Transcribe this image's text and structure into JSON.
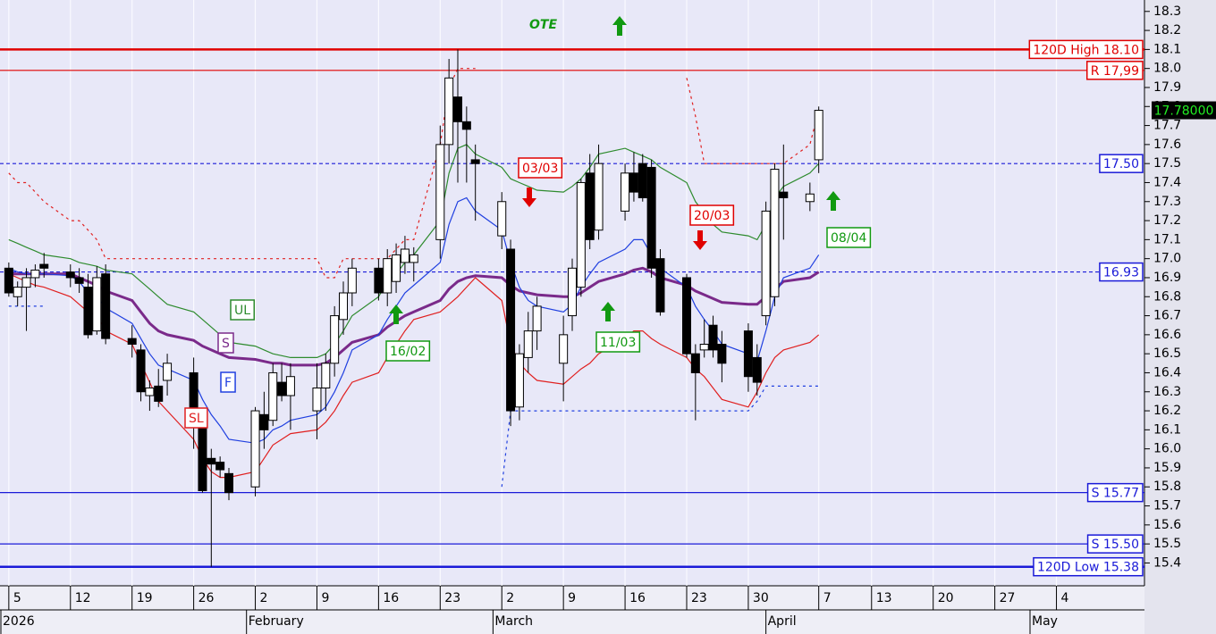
{
  "chart_data": {
    "type": "candlestick",
    "x": [
      "2026-01-05",
      "2026-01-06",
      "2026-01-07",
      "2026-01-08",
      "2026-01-09",
      "2026-01-12",
      "2026-01-13",
      "2026-01-14",
      "2026-01-15",
      "2026-01-16",
      "2026-01-19",
      "2026-01-20",
      "2026-01-21",
      "2026-01-22",
      "2026-01-23",
      "2026-01-26",
      "2026-01-27",
      "2026-01-28",
      "2026-01-29",
      "2026-01-30",
      "2026-02-02",
      "2026-02-03",
      "2026-02-04",
      "2026-02-05",
      "2026-02-06",
      "2026-02-09",
      "2026-02-10",
      "2026-02-11",
      "2026-02-12",
      "2026-02-13",
      "2026-02-16",
      "2026-02-17",
      "2026-02-18",
      "2026-02-19",
      "2026-02-20",
      "2026-02-23",
      "2026-02-24",
      "2026-02-25",
      "2026-02-26",
      "2026-02-27",
      "2026-03-02",
      "2026-03-03",
      "2026-03-04",
      "2026-03-05",
      "2026-03-06",
      "2026-03-09",
      "2026-03-10",
      "2026-03-11",
      "2026-03-12",
      "2026-03-13",
      "2026-03-16",
      "2026-03-17",
      "2026-03-18",
      "2026-03-19",
      "2026-03-20",
      "2026-03-23",
      "2026-03-24",
      "2026-03-25",
      "2026-03-26",
      "2026-03-27",
      "2026-03-30",
      "2026-03-31",
      "2026-04-01",
      "2026-04-02",
      "2026-04-03",
      "2026-04-06",
      "2026-04-07"
    ],
    "open": [
      16.95,
      16.8,
      16.85,
      16.9,
      16.97,
      16.93,
      16.9,
      16.85,
      16.62,
      16.92,
      16.58,
      16.52,
      16.28,
      16.33,
      16.36,
      16.4,
      16.12,
      15.95,
      15.93,
      15.87,
      15.8,
      16.18,
      16.15,
      16.35,
      16.28,
      16.2,
      16.32,
      16.45,
      16.68,
      16.82,
      16.95,
      16.82,
      16.88,
      16.98,
      16.98,
      17.1,
      17.6,
      17.85,
      17.72,
      17.52,
      17.12,
      17.05,
      16.22,
      16.48,
      16.62,
      16.45,
      16.7,
      16.85,
      17.45,
      17.15,
      17.25,
      17.45,
      17.5,
      17.48,
      17.0,
      16.9,
      16.5,
      16.52,
      16.65,
      16.55,
      16.62,
      16.48,
      16.7,
      16.8,
      17.35,
      17.3,
      17.52
    ],
    "high": [
      16.98,
      16.88,
      16.95,
      16.97,
      17.03,
      16.97,
      16.95,
      16.92,
      16.96,
      16.97,
      16.65,
      16.55,
      16.36,
      16.42,
      16.5,
      16.48,
      16.18,
      16.0,
      15.96,
      15.9,
      16.22,
      16.3,
      16.45,
      16.45,
      16.45,
      16.45,
      16.5,
      16.75,
      16.88,
      17.0,
      17.0,
      17.05,
      17.08,
      17.12,
      17.06,
      17.7,
      18.05,
      18.1,
      17.8,
      17.6,
      17.35,
      17.1,
      16.55,
      16.72,
      16.8,
      16.7,
      17.0,
      17.42,
      17.55,
      17.6,
      17.5,
      17.56,
      17.55,
      17.52,
      17.05,
      16.92,
      16.55,
      16.68,
      16.7,
      16.62,
      16.66,
      16.55,
      17.3,
      17.5,
      17.6,
      17.4,
      17.8
    ],
    "low": [
      16.8,
      16.75,
      16.62,
      16.85,
      16.9,
      16.85,
      16.82,
      16.58,
      16.6,
      16.55,
      16.48,
      16.25,
      16.2,
      16.22,
      16.28,
      16.0,
      15.77,
      15.38,
      15.85,
      15.73,
      15.75,
      16.0,
      16.12,
      16.25,
      16.1,
      16.05,
      16.2,
      16.38,
      16.6,
      16.75,
      16.78,
      16.75,
      16.82,
      16.92,
      16.88,
      17.0,
      17.5,
      17.4,
      17.4,
      17.2,
      17.05,
      16.12,
      16.15,
      16.4,
      16.52,
      16.25,
      16.62,
      16.8,
      17.05,
      17.1,
      17.2,
      17.3,
      17.3,
      16.9,
      16.7,
      16.48,
      16.15,
      16.48,
      16.48,
      16.35,
      16.3,
      16.28,
      16.65,
      16.75,
      17.1,
      17.25,
      17.45
    ],
    "close": [
      16.82,
      16.85,
      16.9,
      16.94,
      16.95,
      16.9,
      16.87,
      16.6,
      16.9,
      16.58,
      16.55,
      16.3,
      16.32,
      16.25,
      16.45,
      16.15,
      15.78,
      15.92,
      15.89,
      15.77,
      16.2,
      16.1,
      16.4,
      16.28,
      16.38,
      16.32,
      16.45,
      16.7,
      16.82,
      16.95,
      16.82,
      17.0,
      17.02,
      17.05,
      17.02,
      17.6,
      17.95,
      17.72,
      17.68,
      17.5,
      17.3,
      16.2,
      16.5,
      16.62,
      16.75,
      16.6,
      16.95,
      17.4,
      17.1,
      17.5,
      17.45,
      17.35,
      17.32,
      16.95,
      16.72,
      16.5,
      16.4,
      16.55,
      16.52,
      16.45,
      16.38,
      16.35,
      17.25,
      17.47,
      17.32,
      17.34,
      17.78
    ],
    "series": [
      {
        "name": "UL",
        "color": "#2e8b2e",
        "values": [
          17.1,
          17.08,
          17.06,
          17.04,
          17.02,
          17.0,
          16.98,
          16.97,
          16.96,
          16.94,
          16.92,
          16.88,
          16.84,
          16.8,
          16.76,
          16.72,
          16.68,
          16.64,
          16.6,
          16.56,
          16.54,
          16.52,
          16.5,
          16.49,
          16.48,
          16.48,
          16.5,
          16.55,
          16.62,
          16.7,
          16.8,
          16.88,
          16.92,
          16.98,
          17.02,
          17.2,
          17.45,
          17.58,
          17.6,
          17.55,
          17.48,
          17.42,
          17.4,
          17.38,
          17.36,
          17.35,
          17.38,
          17.42,
          17.48,
          17.55,
          17.58,
          17.56,
          17.54,
          17.52,
          17.48,
          17.4,
          17.3,
          17.24,
          17.18,
          17.14,
          17.12,
          17.1,
          17.18,
          17.32,
          17.38,
          17.45,
          17.5
        ]
      },
      {
        "name": "S",
        "color": "#7a2a8a",
        "values": [
          16.92,
          16.92,
          16.92,
          16.92,
          16.92,
          16.92,
          16.9,
          16.88,
          16.86,
          16.83,
          16.78,
          16.72,
          16.66,
          16.62,
          16.6,
          16.57,
          16.54,
          16.52,
          16.5,
          16.48,
          16.47,
          16.46,
          16.45,
          16.45,
          16.44,
          16.44,
          16.45,
          16.48,
          16.52,
          16.56,
          16.6,
          16.64,
          16.67,
          16.7,
          16.72,
          16.78,
          16.84,
          16.88,
          16.9,
          16.91,
          16.9,
          16.86,
          16.83,
          16.82,
          16.81,
          16.8,
          16.8,
          16.82,
          16.85,
          16.88,
          16.92,
          16.94,
          16.95,
          16.93,
          16.9,
          16.86,
          16.83,
          16.81,
          16.79,
          16.77,
          16.76,
          16.76,
          16.8,
          16.84,
          16.88,
          16.9,
          16.93
        ]
      },
      {
        "name": "F",
        "color": "#2040e0",
        "values": [
          16.95,
          16.93,
          16.92,
          16.92,
          16.92,
          16.91,
          16.88,
          16.82,
          16.8,
          16.74,
          16.66,
          16.58,
          16.5,
          16.44,
          16.42,
          16.36,
          16.26,
          16.18,
          16.12,
          16.05,
          16.03,
          16.05,
          16.1,
          16.12,
          16.15,
          16.18,
          16.22,
          16.3,
          16.4,
          16.52,
          16.6,
          16.68,
          16.75,
          16.82,
          16.86,
          16.98,
          17.18,
          17.3,
          17.32,
          17.25,
          17.15,
          16.98,
          16.85,
          16.78,
          16.75,
          16.72,
          16.76,
          16.85,
          16.92,
          16.98,
          17.05,
          17.1,
          17.1,
          17.02,
          16.95,
          16.85,
          16.75,
          16.68,
          16.62,
          16.55,
          16.5,
          16.46,
          16.62,
          16.8,
          16.9,
          16.95,
          17.02
        ]
      },
      {
        "name": "SL",
        "color": "#e02020",
        "values": [
          16.92,
          16.9,
          16.88,
          16.86,
          16.85,
          16.8,
          16.76,
          16.72,
          16.7,
          16.62,
          16.55,
          16.45,
          16.35,
          16.25,
          16.2,
          16.05,
          15.95,
          15.88,
          15.85,
          15.85,
          15.88,
          15.95,
          16.02,
          16.05,
          16.08,
          16.1,
          16.14,
          16.2,
          16.28,
          16.35,
          16.4,
          16.48,
          16.55,
          16.62,
          16.68,
          16.72,
          16.76,
          16.8,
          16.85,
          16.9,
          16.78,
          16.55,
          16.45,
          16.4,
          16.36,
          16.34,
          16.38,
          16.42,
          16.45,
          16.5,
          16.58,
          16.62,
          16.62,
          16.58,
          16.55,
          16.48,
          16.42,
          16.38,
          16.32,
          16.26,
          16.22,
          16.3,
          16.4,
          16.48,
          16.52,
          16.56,
          16.6
        ]
      },
      {
        "color": "#e02020",
        "dashed": true,
        "values": [
          17.45,
          17.4,
          17.4,
          17.35,
          17.3,
          17.2,
          17.2,
          17.15,
          17.1,
          17.0,
          17.0,
          17.0,
          17.0,
          17.0,
          17.0,
          17.0,
          17.0,
          17.0,
          17.0,
          17.0,
          17.0,
          17.0,
          17.0,
          17.0,
          17.0,
          17.0,
          16.9,
          16.9,
          17.0,
          17.0,
          17.0,
          17.0,
          17.05,
          17.1,
          17.1,
          17.6,
          17.9,
          18.0,
          18.0,
          18.0,
          null,
          null,
          null,
          null,
          null,
          null,
          null,
          null,
          null,
          null,
          null,
          null,
          null,
          null,
          null,
          17.95,
          17.75,
          17.5,
          17.5,
          17.5,
          17.5,
          17.5,
          17.5,
          17.5,
          17.5,
          17.6,
          17.78
        ]
      },
      {
        "color": "#2040e0",
        "dashed": true,
        "values": [
          16.75,
          16.75,
          16.75,
          16.75,
          16.75,
          null,
          null,
          null,
          null,
          null,
          null,
          null,
          null,
          null,
          null,
          null,
          null,
          null,
          null,
          null,
          null,
          null,
          null,
          null,
          null,
          null,
          null,
          null,
          null,
          null,
          null,
          null,
          null,
          null,
          null,
          null,
          null,
          null,
          null,
          null,
          15.8,
          16.2,
          16.2,
          16.2,
          16.2,
          16.2,
          16.2,
          16.2,
          16.2,
          16.2,
          16.2,
          16.2,
          16.2,
          16.2,
          16.2,
          16.2,
          16.2,
          16.2,
          16.2,
          16.2,
          16.2,
          16.25,
          16.33,
          16.33,
          16.33,
          16.33,
          16.33
        ]
      }
    ],
    "levels": [
      {
        "value": 18.1,
        "label": "120D High 18.10",
        "color": "#e00000",
        "style": "thick"
      },
      {
        "value": 17.99,
        "label": "R 17,99",
        "color": "#e00000",
        "style": "thin"
      },
      {
        "value": 17.5,
        "label": "17.50",
        "color": "#1a1ad8",
        "style": "dashed"
      },
      {
        "value": 16.93,
        "label": "16.93",
        "color": "#1a1ad8",
        "style": "dashed"
      },
      {
        "value": 15.77,
        "label": "S 15.77",
        "color": "#1a1ad8",
        "style": "thin"
      },
      {
        "value": 15.5,
        "label": "S 15.50",
        "color": "#1a1ad8",
        "style": "thin"
      },
      {
        "value": 15.38,
        "label": "120D Low 15.38",
        "color": "#1a1ad8",
        "style": "thick"
      }
    ],
    "last": {
      "value": 17.78,
      "label": "17.78000"
    },
    "annotations": [
      {
        "text": "OTE",
        "color": "#119911",
        "arrow": "up"
      },
      {
        "text": "03/03",
        "color": "#e00000",
        "arrow": "down"
      },
      {
        "text": "20/03",
        "color": "#e00000",
        "arrow": "down"
      },
      {
        "text": "16/02",
        "color": "#119911",
        "arrow": "up"
      },
      {
        "text": "11/03",
        "color": "#119911",
        "arrow": "up"
      },
      {
        "text": "08/04",
        "color": "#119911",
        "arrow": "up"
      }
    ],
    "xlim": [
      "2026-01-04",
      "2026-05-14"
    ],
    "xticks": [
      {
        "value": "2026-01-05",
        "label": "5"
      },
      {
        "value": "2026-01-12",
        "label": "12"
      },
      {
        "value": "2026-01-19",
        "label": "19"
      },
      {
        "value": "2026-01-26",
        "label": "26"
      },
      {
        "value": "2026-02-02",
        "label": "2"
      },
      {
        "value": "2026-02-09",
        "label": "9"
      },
      {
        "value": "2026-02-16",
        "label": "16"
      },
      {
        "value": "2026-02-23",
        "label": "23"
      },
      {
        "value": "2026-03-02",
        "label": "2"
      },
      {
        "value": "2026-03-09",
        "label": "9"
      },
      {
        "value": "2026-03-16",
        "label": "16"
      },
      {
        "value": "2026-03-23",
        "label": "23"
      },
      {
        "value": "2026-03-30",
        "label": "30"
      },
      {
        "value": "2026-04-07",
        "label": "7"
      },
      {
        "value": "2026-04-13",
        "label": "13"
      },
      {
        "value": "2026-04-20",
        "label": "20"
      },
      {
        "value": "2026-04-27",
        "label": "27"
      },
      {
        "value": "2026-05-04",
        "label": "4"
      }
    ],
    "months": [
      {
        "value": "2026-01-04",
        "label": "2026"
      },
      {
        "value": "2026-02-01",
        "label": "February"
      },
      {
        "value": "2026-03-01",
        "label": "March"
      },
      {
        "value": "2026-04-01",
        "label": "April"
      },
      {
        "value": "2026-05-01",
        "label": "May"
      }
    ],
    "ylim": [
      15.28,
      18.36
    ],
    "yticks": [
      15.4,
      15.5,
      15.6,
      15.7,
      15.8,
      15.9,
      {
        "value": 16,
        "label": "16.0"
      },
      16.1,
      16.2,
      16.3,
      16.4,
      16.5,
      16.6,
      16.7,
      16.8,
      16.9,
      {
        "value": 17,
        "label": "17.0"
      },
      17.1,
      17.2,
      17.3,
      17.4,
      17.5,
      17.6,
      17.7,
      17.8,
      17.9,
      {
        "value": 18,
        "label": "18.0"
      },
      18.1,
      18.2,
      18.3
    ]
  }
}
